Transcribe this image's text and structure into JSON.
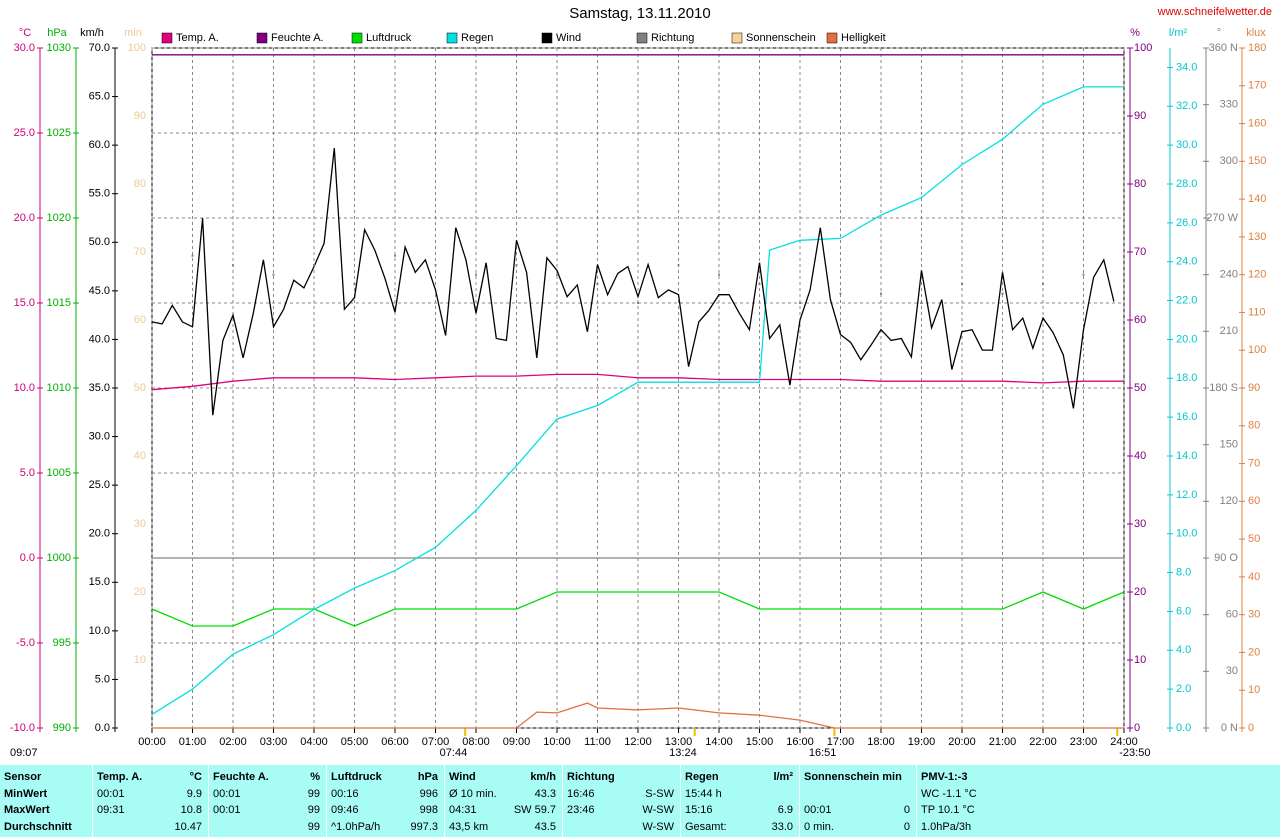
{
  "chart_data": {
    "type": "line",
    "title": "Samstag, 13.11.2010",
    "source": "www.schneifelwetter.de",
    "stamp": "09:07",
    "xlim": [
      "00:00",
      "24:00"
    ],
    "xticks": [
      "00:00",
      "01:00",
      "02:00",
      "03:00",
      "04:00",
      "05:00",
      "06:00",
      "07:00",
      "08:00",
      "09:00",
      "10:00",
      "11:00",
      "12:00",
      "13:00",
      "14:00",
      "15:00",
      "16:00",
      "17:00",
      "18:00",
      "19:00",
      "20:00",
      "21:00",
      "22:00",
      "23:00",
      "24:00"
    ],
    "annotations": [
      "07:44",
      "13:24",
      "16:51",
      "-23:50"
    ],
    "grid": true,
    "axes": [
      {
        "unit": "°C",
        "color": "#d0007a",
        "ylim": [
          -10,
          30
        ],
        "yticks": [
          {
            "value": -10,
            "label": "-10.0"
          },
          {
            "value": -5,
            "label": "-5.0"
          },
          {
            "value": 0,
            "label": "0.0"
          },
          {
            "value": 5,
            "label": "5.0"
          },
          {
            "value": 10,
            "label": "10.0"
          },
          {
            "value": 15,
            "label": "15.0"
          },
          {
            "value": 20,
            "label": "20.0"
          },
          {
            "value": 25,
            "label": "25.0"
          },
          {
            "value": 30,
            "label": "30.0"
          }
        ]
      },
      {
        "unit": "hPa",
        "color": "#00b000",
        "ylim": [
          990,
          1030
        ],
        "yticks": [
          990,
          995,
          1000,
          1005,
          1010,
          1015,
          1020,
          1025,
          1030
        ]
      },
      {
        "unit": "km/h",
        "color": "#000000",
        "ylim": [
          0,
          70
        ],
        "yticks": [
          {
            "value": 0,
            "label": "0.0"
          },
          {
            "value": 5,
            "label": "5.0"
          },
          {
            "value": 10,
            "label": "10.0"
          },
          {
            "value": 15,
            "label": "15.0"
          },
          {
            "value": 20,
            "label": "20.0"
          },
          {
            "value": 25,
            "label": "25.0"
          },
          {
            "value": 30,
            "label": "30.0"
          },
          {
            "value": 35,
            "label": "35.0"
          },
          {
            "value": 40,
            "label": "40.0"
          },
          {
            "value": 45,
            "label": "45.0"
          },
          {
            "value": 50,
            "label": "50.0"
          },
          {
            "value": 55,
            "label": "55.0"
          },
          {
            "value": 60,
            "label": "60.0"
          },
          {
            "value": 65,
            "label": "65.0"
          },
          {
            "value": 70,
            "label": "70.0"
          }
        ]
      },
      {
        "unit": "min",
        "color": "#f0c890",
        "ylim": [
          0,
          100
        ],
        "yticks": [
          10,
          20,
          30,
          40,
          50,
          60,
          70,
          80,
          90,
          100
        ]
      },
      {
        "unit": "%",
        "color": "#800080",
        "ylim": [
          0,
          100
        ],
        "yticks": [
          0,
          10,
          20,
          30,
          40,
          50,
          60,
          70,
          80,
          90,
          100
        ]
      },
      {
        "unit": "l/m²",
        "color": "#00c8d0",
        "ylim": [
          0,
          35
        ],
        "yticks": [
          {
            "value": 0,
            "label": "0.0"
          },
          {
            "value": 2,
            "label": "2.0"
          },
          {
            "value": 4,
            "label": "4.0"
          },
          {
            "value": 6,
            "label": "6.0"
          },
          {
            "value": 8,
            "label": "8.0"
          },
          {
            "value": 10,
            "label": "10.0"
          },
          {
            "value": 12,
            "label": "12.0"
          },
          {
            "value": 14,
            "label": "14.0"
          },
          {
            "value": 16,
            "label": "16.0"
          },
          {
            "value": 18,
            "label": "18.0"
          },
          {
            "value": 20,
            "label": "20.0"
          },
          {
            "value": 22,
            "label": "22.0"
          },
          {
            "value": 24,
            "label": "24.0"
          },
          {
            "value": 26,
            "label": "26.0"
          },
          {
            "value": 28,
            "label": "28.0"
          },
          {
            "value": 30,
            "label": "30.0"
          },
          {
            "value": 32,
            "label": "32.0"
          },
          {
            "value": 34,
            "label": "34.0"
          }
        ]
      },
      {
        "unit": "°",
        "color": "#808080",
        "ylim": [
          0,
          360
        ],
        "yticks": [
          {
            "value": 0,
            "label": "0 N"
          },
          30,
          60,
          {
            "value": 90,
            "label": "90 O"
          },
          120,
          150,
          {
            "value": 180,
            "label": "180 S"
          },
          210,
          240,
          {
            "value": 270,
            "label": "270 W"
          },
          300,
          330,
          {
            "value": 360,
            "label": "360 N"
          }
        ]
      },
      {
        "unit": "klux",
        "color": "#e08040",
        "ylim": [
          0,
          180
        ],
        "yticks": [
          0,
          10,
          20,
          30,
          40,
          50,
          60,
          70,
          80,
          90,
          100,
          110,
          120,
          130,
          140,
          150,
          160,
          170,
          180
        ]
      }
    ],
    "series": [
      {
        "name": "Temp. A.",
        "color": "#e0007f",
        "axis": 0,
        "x": [
          "00:00",
          "01:00",
          "02:00",
          "03:00",
          "04:00",
          "05:00",
          "06:00",
          "07:00",
          "08:00",
          "09:00",
          "10:00",
          "11:00",
          "12:00",
          "13:00",
          "14:00",
          "15:00",
          "16:00",
          "17:00",
          "18:00",
          "19:00",
          "20:00",
          "21:00",
          "22:00",
          "23:00",
          "24:00"
        ],
        "values": [
          9.9,
          10.1,
          10.4,
          10.6,
          10.6,
          10.6,
          10.5,
          10.6,
          10.7,
          10.7,
          10.8,
          10.8,
          10.6,
          10.6,
          10.5,
          10.5,
          10.5,
          10.5,
          10.4,
          10.4,
          10.4,
          10.4,
          10.3,
          10.4,
          10.4
        ]
      },
      {
        "name": "Feuchte A.",
        "color": "#800080",
        "axis": 4,
        "x": [
          "00:00",
          "24:00"
        ],
        "values": [
          99,
          99
        ]
      },
      {
        "name": "Luftdruck",
        "color": "#00dd00",
        "axis": 1,
        "x": [
          "00:00",
          "01:00",
          "02:00",
          "03:00",
          "04:00",
          "05:00",
          "06:00",
          "07:00",
          "08:00",
          "09:00",
          "10:00",
          "11:00",
          "12:00",
          "13:00",
          "14:00",
          "15:00",
          "16:00",
          "17:00",
          "18:00",
          "19:00",
          "20:00",
          "21:00",
          "22:00",
          "23:00",
          "24:00"
        ],
        "values": [
          997,
          996,
          996,
          997,
          997,
          996,
          997,
          997,
          997,
          997,
          998,
          998,
          998,
          998,
          998,
          997,
          997,
          997,
          997,
          997,
          997,
          997,
          998,
          997,
          998
        ]
      },
      {
        "name": "Regen",
        "color": "#00e0e0",
        "axis": 5,
        "x": [
          "00:00",
          "01:00",
          "02:00",
          "03:00",
          "04:00",
          "05:00",
          "06:00",
          "07:00",
          "08:00",
          "09:00",
          "10:00",
          "11:00",
          "12:00",
          "13:00",
          "14:00",
          "15:00",
          "15:15",
          "16:00",
          "17:00",
          "18:00",
          "19:00",
          "20:00",
          "21:00",
          "22:00",
          "23:00",
          "24:00"
        ],
        "values": [
          0.7,
          2.0,
          3.8,
          4.8,
          6.1,
          7.2,
          8.1,
          9.3,
          11.2,
          13.5,
          15.9,
          16.6,
          17.8,
          17.8,
          17.8,
          17.8,
          24.6,
          25.1,
          25.2,
          26.4,
          27.3,
          29.0,
          30.3,
          32.1,
          33.0,
          33.0
        ]
      },
      {
        "name": "Wind",
        "color": "#000000",
        "axis": 2,
        "x": [
          "00:00",
          "00:15",
          "00:30",
          "00:45",
          "01:00",
          "01:15",
          "01:30",
          "01:45",
          "02:00",
          "02:15",
          "02:30",
          "02:45",
          "03:00",
          "03:15",
          "03:30",
          "03:45",
          "04:00",
          "04:15",
          "04:30",
          "04:45",
          "05:00",
          "05:15",
          "05:30",
          "05:45",
          "06:00",
          "06:15",
          "06:30",
          "06:45",
          "07:00",
          "07:15",
          "07:30",
          "07:45",
          "08:00",
          "08:15",
          "08:30",
          "08:45",
          "09:00",
          "09:15",
          "09:30",
          "09:45",
          "10:00",
          "10:15",
          "10:30",
          "10:45",
          "11:00",
          "11:15",
          "11:30",
          "11:45",
          "12:00",
          "12:15",
          "12:30",
          "12:45",
          "13:00",
          "13:15",
          "13:30",
          "13:45",
          "14:00",
          "14:15",
          "14:30",
          "14:45",
          "15:00",
          "15:15",
          "15:30",
          "15:45",
          "16:00",
          "16:15",
          "16:30",
          "16:45",
          "17:00",
          "17:15",
          "17:30",
          "17:45",
          "18:00",
          "18:15",
          "18:30",
          "18:45",
          "19:00",
          "19:15",
          "19:30",
          "19:45",
          "20:00",
          "20:15",
          "20:30",
          "20:45",
          "21:00",
          "21:15",
          "21:30",
          "21:45",
          "22:00",
          "22:15",
          "22:30",
          "22:45",
          "23:00",
          "23:15",
          "23:30",
          "23:45"
        ],
        "values": [
          41.8,
          41.6,
          43.5,
          41.8,
          41.3,
          52.5,
          32.2,
          39.9,
          42.5,
          38.1,
          42.7,
          48.2,
          41.3,
          43.1,
          46.1,
          45.3,
          47.5,
          49.9,
          59.7,
          43.1,
          44.3,
          51.3,
          49.2,
          46.3,
          42.8,
          49.5,
          46.9,
          48.2,
          45.1,
          40.4,
          51.5,
          48.2,
          42.7,
          47.9,
          40.1,
          39.9,
          50.2,
          46.9,
          38.1,
          48.4,
          47.1,
          44.4,
          45.6,
          40.8,
          47.7,
          44.6,
          46.8,
          47.5,
          44.4,
          47.7,
          44.3,
          45.1,
          44.6,
          37.2,
          41.8,
          43.0,
          44.6,
          44.6,
          42.7,
          41.0,
          47.9,
          40.1,
          41.5,
          35.3,
          42.0,
          45.1,
          51.5,
          44.1,
          40.5,
          39.7,
          37.9,
          39.4,
          41.0,
          39.9,
          40.1,
          38.2,
          47.1,
          41.2,
          44.1,
          36.9,
          40.8,
          41.0,
          38.9,
          38.9,
          46.9,
          41.0,
          42.2,
          39.1,
          42.2,
          40.7,
          38.4,
          32.9,
          41.0,
          46.4,
          48.2,
          43.9
        ]
      },
      {
        "name": "Richtung",
        "color": "#808080",
        "axis": 6,
        "style": "dots",
        "x": [
          "00:00",
          "01:00",
          "02:00",
          "03:00",
          "04:00",
          "05:00",
          "06:00",
          "07:00",
          "08:00",
          "09:00",
          "10:00",
          "11:00",
          "12:00",
          "13:00",
          "14:00",
          "15:00",
          "16:00",
          "17:00",
          "18:00",
          "19:00",
          "20:00",
          "21:00",
          "22:00",
          "23:00"
        ],
        "values": [
          240,
          250,
          245,
          240,
          245,
          235,
          250,
          245,
          240,
          245,
          240,
          235,
          225,
          245,
          240,
          235,
          225,
          230,
          230,
          225,
          235,
          230,
          235,
          240
        ]
      },
      {
        "name": "Sonnenschein",
        "color": "#f8d098",
        "axis": 3
      },
      {
        "name": "Helligkeit",
        "color": "#e07040",
        "axis": 7,
        "x": [
          "00:00",
          "07:44",
          "09:00",
          "09:30",
          "10:00",
          "10:45",
          "11:00",
          "12:00",
          "13:00",
          "14:00",
          "15:00",
          "16:00",
          "16:51",
          "24:00"
        ],
        "values": [
          0,
          0,
          0,
          4.2,
          4.0,
          6.6,
          5.3,
          4.8,
          5.3,
          4.0,
          3.4,
          2.1,
          0,
          0
        ]
      }
    ]
  },
  "table": {
    "header": [
      {
        "l": "Sensor"
      },
      {
        "l": "Temp. A.",
        "r": "°C"
      },
      {
        "l": "Feuchte A.",
        "r": "%"
      },
      {
        "l": "Luftdruck",
        "r": "hPa"
      },
      {
        "l": "Wind",
        "r": "km/h"
      },
      {
        "l": "Richtung"
      },
      {
        "l": "Regen",
        "r": "l/m²"
      },
      {
        "l": "Sonnenschein min"
      },
      {
        "l": "PMV-1:-3"
      }
    ],
    "rows": [
      [
        {
          "l": "MinWert"
        },
        {
          "l": "00:01",
          "r": "9.9"
        },
        {
          "l": "00:01",
          "r": "99"
        },
        {
          "l": "00:16",
          "r": "996"
        },
        {
          "l": "Ø 10 min.",
          "r": "43.3"
        },
        {
          "l": "16:46",
          "r": "S-SW"
        },
        {
          "l": "15:44 h"
        },
        {},
        {
          "l": "WC -1.1 °C"
        }
      ],
      [
        {
          "l": "MaxWert"
        },
        {
          "l": "09:31",
          "r": "10.8"
        },
        {
          "l": "00:01",
          "r": "99"
        },
        {
          "l": "09:46",
          "r": "998"
        },
        {
          "l": "04:31",
          "r": "SW 59.7"
        },
        {
          "l": "23:46",
          "r": "W-SW"
        },
        {
          "l": "15:16",
          "r": "6.9"
        },
        {
          "l": "00:01",
          "r": "0"
        },
        {
          "l": "TP 10.1 °C"
        }
      ],
      [
        {
          "l": "Durchschnitt"
        },
        {
          "r": "10.47"
        },
        {
          "r": "99"
        },
        {
          "l": "^1.0hPa/h",
          "r": "997.3"
        },
        {
          "l": "43,5 km",
          "r": "43.5"
        },
        {
          "r": "W-SW"
        },
        {
          "l": "Gesamt:",
          "r": "33.0"
        },
        {
          "l": "0 min.",
          "r": "0"
        },
        {
          "l": "1.0hPa/3h"
        }
      ]
    ]
  }
}
